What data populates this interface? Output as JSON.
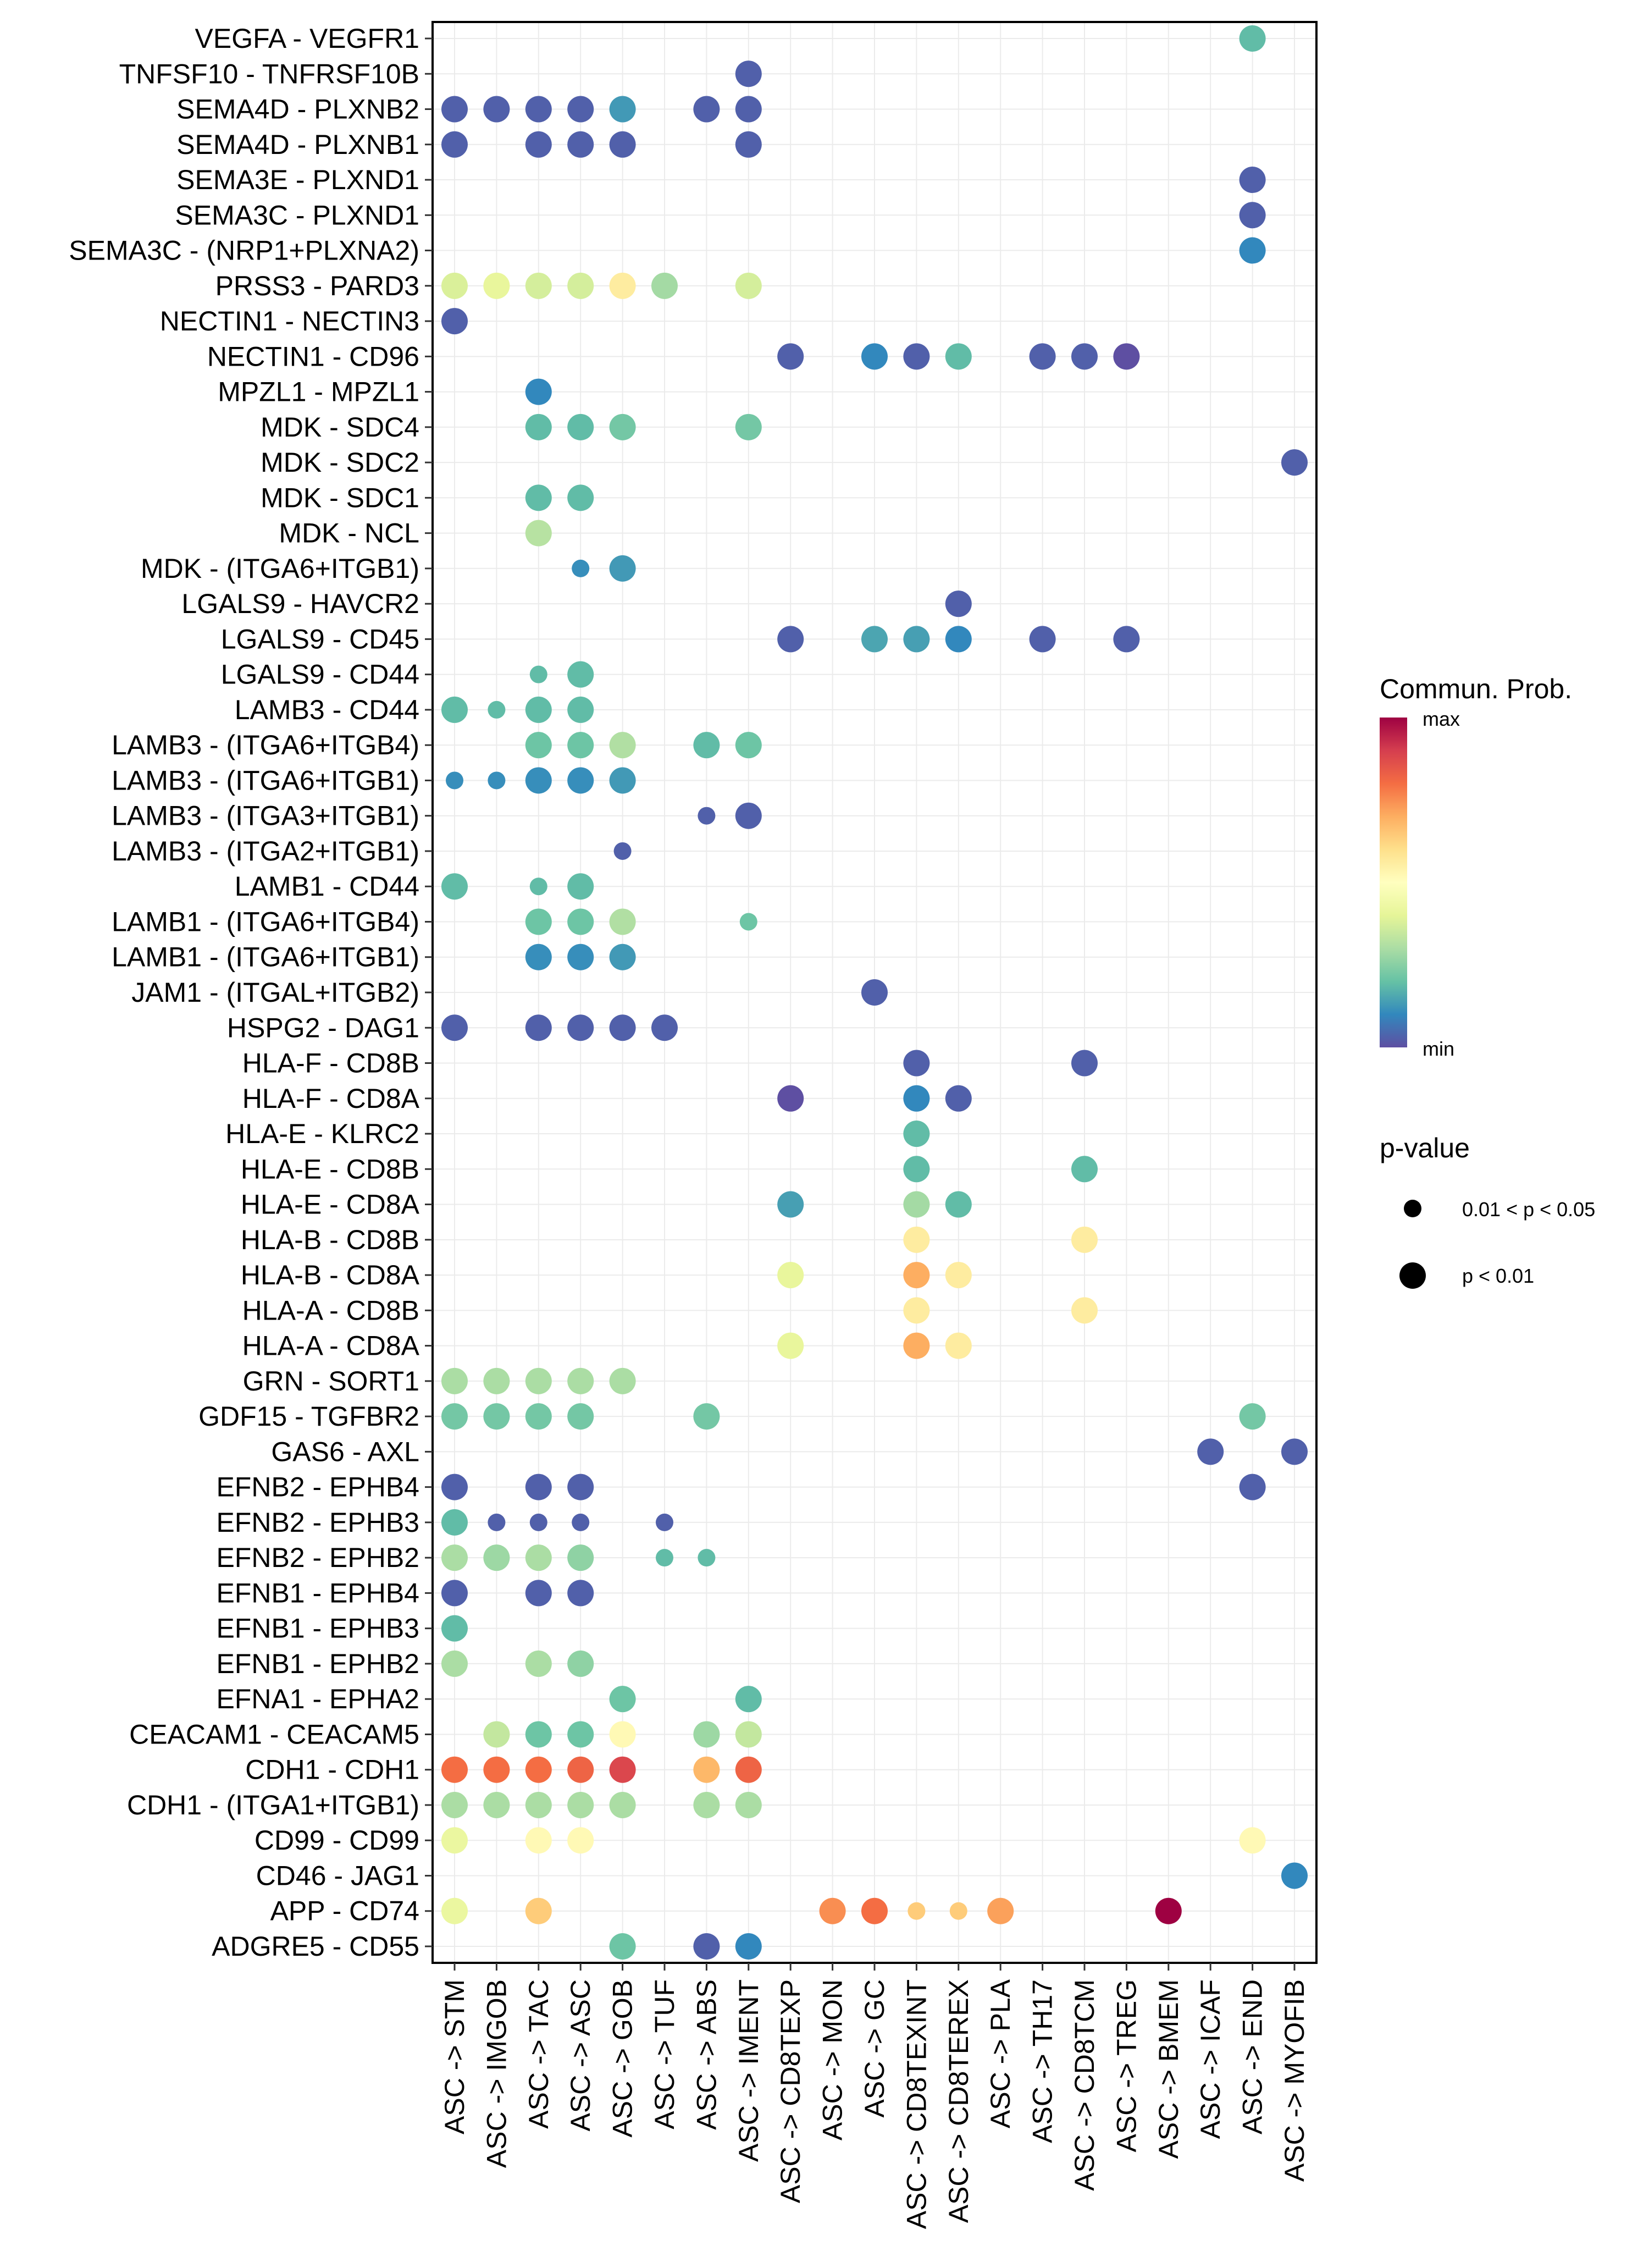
{
  "chart_data": {
    "type": "scatter",
    "subtype": "dot-matrix",
    "title": "",
    "xlabel": "",
    "ylabel": "",
    "grid": true,
    "x": [
      "ASC -> STM",
      "ASC -> IMGOB",
      "ASC -> TAC",
      "ASC -> ASC",
      "ASC -> GOB",
      "ASC -> TUF",
      "ASC -> ABS",
      "ASC -> IMENT",
      "ASC -> CD8TEXP",
      "ASC -> MON",
      "ASC -> GC",
      "ASC -> CD8TEXINT",
      "ASC -> CD8TEREX",
      "ASC -> PLA",
      "ASC -> TH17",
      "ASC -> CD8TCM",
      "ASC -> TREG",
      "ASC -> BMEM",
      "ASC -> ICAF",
      "ASC -> END",
      "ASC -> MYOFIB"
    ],
    "y": [
      "VEGFA - VEGFR1",
      "TNFSF10 - TNFRSF10B",
      "SEMA4D - PLXNB2",
      "SEMA4D - PLXNB1",
      "SEMA3E - PLXND1",
      "SEMA3C - PLXND1",
      "SEMA3C - (NRP1+PLXNA2)",
      "PRSS3 - PARD3",
      "NECTIN1 - NECTIN3",
      "NECTIN1 - CD96",
      "MPZL1 - MPZL1",
      "MDK - SDC4",
      "MDK - SDC2",
      "MDK - SDC1",
      "MDK - NCL",
      "MDK - (ITGA6+ITGB1)",
      "LGALS9 - HAVCR2",
      "LGALS9 - CD45",
      "LGALS9 - CD44",
      "LAMB3 - CD44",
      "LAMB3 - (ITGA6+ITGB4)",
      "LAMB3 - (ITGA6+ITGB1)",
      "LAMB3 - (ITGA3+ITGB1)",
      "LAMB3 - (ITGA2+ITGB1)",
      "LAMB1 - CD44",
      "LAMB1 - (ITGA6+ITGB4)",
      "LAMB1 - (ITGA6+ITGB1)",
      "JAM1 - (ITGAL+ITGB2)",
      "HSPG2 - DAG1",
      "HLA-F - CD8B",
      "HLA-F - CD8A",
      "HLA-E - KLRC2",
      "HLA-E - CD8B",
      "HLA-E - CD8A",
      "HLA-B - CD8B",
      "HLA-B - CD8A",
      "HLA-A - CD8B",
      "HLA-A - CD8A",
      "GRN - SORT1",
      "GDF15 - TGFBR2",
      "GAS6 - AXL",
      "EFNB2 - EPHB4",
      "EFNB2 - EPHB3",
      "EFNB2 - EPHB2",
      "EFNB1 - EPHB4",
      "EFNB1 - EPHB3",
      "EFNB1 - EPHB2",
      "EFNA1 - EPHA2",
      "CEACAM1 - CEACAM5",
      "CDH1 - CDH1",
      "CDH1 - (ITGA1+ITGB1)",
      "CD99 - CD99",
      "CD46 - JAG1",
      "APP - CD74",
      "ADGRE5 - CD55"
    ],
    "point_fields": [
      "y_index",
      "x_index",
      "commun_prob_scaled_0_to_1",
      "pvalue_class"
    ],
    "points": [
      [
        0,
        19,
        0.19,
        "p<0.01"
      ],
      [
        1,
        7,
        0.03,
        "p<0.01"
      ],
      [
        2,
        0,
        0.03,
        "p<0.01"
      ],
      [
        2,
        1,
        0.03,
        "p<0.01"
      ],
      [
        2,
        2,
        0.03,
        "p<0.01"
      ],
      [
        2,
        3,
        0.03,
        "p<0.01"
      ],
      [
        2,
        4,
        0.13,
        "p<0.01"
      ],
      [
        2,
        6,
        0.03,
        "p<0.01"
      ],
      [
        2,
        7,
        0.03,
        "p<0.01"
      ],
      [
        3,
        0,
        0.03,
        "p<0.01"
      ],
      [
        3,
        2,
        0.03,
        "p<0.01"
      ],
      [
        3,
        3,
        0.03,
        "p<0.01"
      ],
      [
        3,
        4,
        0.03,
        "p<0.01"
      ],
      [
        3,
        7,
        0.03,
        "p<0.01"
      ],
      [
        4,
        19,
        0.03,
        "p<0.01"
      ],
      [
        5,
        19,
        0.03,
        "p<0.01"
      ],
      [
        6,
        19,
        0.1,
        "p<0.01"
      ],
      [
        7,
        0,
        0.38,
        "p<0.01"
      ],
      [
        7,
        1,
        0.41,
        "p<0.01"
      ],
      [
        7,
        2,
        0.37,
        "p<0.01"
      ],
      [
        7,
        3,
        0.37,
        "p<0.01"
      ],
      [
        7,
        4,
        0.56,
        "p<0.01"
      ],
      [
        7,
        5,
        0.29,
        "p<0.01"
      ],
      [
        7,
        7,
        0.37,
        "p<0.01"
      ],
      [
        8,
        0,
        0.03,
        "p<0.01"
      ],
      [
        9,
        8,
        0.03,
        "p<0.01"
      ],
      [
        9,
        10,
        0.1,
        "p<0.01"
      ],
      [
        9,
        11,
        0.03,
        "p<0.01"
      ],
      [
        9,
        12,
        0.19,
        "p<0.01"
      ],
      [
        9,
        14,
        0.03,
        "p<0.01"
      ],
      [
        9,
        15,
        0.03,
        "p<0.01"
      ],
      [
        9,
        16,
        0.0,
        "p<0.01"
      ],
      [
        10,
        2,
        0.1,
        "p<0.01"
      ],
      [
        11,
        2,
        0.19,
        "p<0.01"
      ],
      [
        11,
        3,
        0.19,
        "p<0.01"
      ],
      [
        11,
        4,
        0.22,
        "p<0.01"
      ],
      [
        11,
        7,
        0.22,
        "p<0.01"
      ],
      [
        12,
        20,
        0.03,
        "p<0.01"
      ],
      [
        13,
        2,
        0.19,
        "p<0.01"
      ],
      [
        13,
        3,
        0.19,
        "p<0.01"
      ],
      [
        14,
        2,
        0.32,
        "p<0.01"
      ],
      [
        15,
        3,
        0.11,
        "0.01<p<0.05"
      ],
      [
        15,
        4,
        0.13,
        "p<0.01"
      ],
      [
        16,
        12,
        0.03,
        "p<0.01"
      ],
      [
        17,
        8,
        0.03,
        "p<0.01"
      ],
      [
        17,
        10,
        0.15,
        "p<0.01"
      ],
      [
        17,
        11,
        0.14,
        "p<0.01"
      ],
      [
        17,
        12,
        0.1,
        "p<0.01"
      ],
      [
        17,
        14,
        0.03,
        "p<0.01"
      ],
      [
        17,
        16,
        0.03,
        "p<0.01"
      ],
      [
        18,
        2,
        0.19,
        "0.01<p<0.05"
      ],
      [
        18,
        3,
        0.19,
        "p<0.01"
      ],
      [
        19,
        0,
        0.19,
        "p<0.01"
      ],
      [
        19,
        1,
        0.19,
        "0.01<p<0.05"
      ],
      [
        19,
        2,
        0.19,
        "p<0.01"
      ],
      [
        19,
        3,
        0.19,
        "p<0.01"
      ],
      [
        20,
        2,
        0.21,
        "p<0.01"
      ],
      [
        20,
        3,
        0.21,
        "p<0.01"
      ],
      [
        20,
        4,
        0.31,
        "p<0.01"
      ],
      [
        20,
        6,
        0.19,
        "p<0.01"
      ],
      [
        20,
        7,
        0.21,
        "p<0.01"
      ],
      [
        21,
        0,
        0.11,
        "0.01<p<0.05"
      ],
      [
        21,
        1,
        0.11,
        "0.01<p<0.05"
      ],
      [
        21,
        2,
        0.11,
        "p<0.01"
      ],
      [
        21,
        3,
        0.11,
        "p<0.01"
      ],
      [
        21,
        4,
        0.13,
        "p<0.01"
      ],
      [
        22,
        6,
        0.03,
        "0.01<p<0.05"
      ],
      [
        22,
        7,
        0.03,
        "p<0.01"
      ],
      [
        23,
        4,
        0.03,
        "0.01<p<0.05"
      ],
      [
        24,
        0,
        0.19,
        "p<0.01"
      ],
      [
        24,
        2,
        0.19,
        "0.01<p<0.05"
      ],
      [
        24,
        3,
        0.19,
        "p<0.01"
      ],
      [
        25,
        2,
        0.21,
        "p<0.01"
      ],
      [
        25,
        3,
        0.21,
        "p<0.01"
      ],
      [
        25,
        4,
        0.31,
        "p<0.01"
      ],
      [
        25,
        7,
        0.21,
        "0.01<p<0.05"
      ],
      [
        26,
        2,
        0.11,
        "p<0.01"
      ],
      [
        26,
        3,
        0.11,
        "p<0.01"
      ],
      [
        26,
        4,
        0.13,
        "p<0.01"
      ],
      [
        27,
        10,
        0.03,
        "p<0.01"
      ],
      [
        28,
        0,
        0.03,
        "p<0.01"
      ],
      [
        28,
        2,
        0.03,
        "p<0.01"
      ],
      [
        28,
        3,
        0.03,
        "p<0.01"
      ],
      [
        28,
        4,
        0.03,
        "p<0.01"
      ],
      [
        28,
        5,
        0.03,
        "p<0.01"
      ],
      [
        29,
        11,
        0.03,
        "p<0.01"
      ],
      [
        29,
        15,
        0.03,
        "p<0.01"
      ],
      [
        30,
        8,
        0.0,
        "p<0.01"
      ],
      [
        30,
        11,
        0.1,
        "p<0.01"
      ],
      [
        30,
        12,
        0.03,
        "p<0.01"
      ],
      [
        31,
        11,
        0.19,
        "p<0.01"
      ],
      [
        32,
        11,
        0.19,
        "p<0.01"
      ],
      [
        32,
        15,
        0.19,
        "p<0.01"
      ],
      [
        33,
        8,
        0.14,
        "p<0.01"
      ],
      [
        33,
        11,
        0.29,
        "p<0.01"
      ],
      [
        33,
        12,
        0.19,
        "p<0.01"
      ],
      [
        34,
        11,
        0.56,
        "p<0.01"
      ],
      [
        34,
        15,
        0.56,
        "p<0.01"
      ],
      [
        35,
        8,
        0.41,
        "p<0.01"
      ],
      [
        35,
        11,
        0.7,
        "p<0.01"
      ],
      [
        35,
        12,
        0.56,
        "p<0.01"
      ],
      [
        36,
        11,
        0.56,
        "p<0.01"
      ],
      [
        36,
        15,
        0.56,
        "p<0.01"
      ],
      [
        37,
        8,
        0.41,
        "p<0.01"
      ],
      [
        37,
        11,
        0.7,
        "p<0.01"
      ],
      [
        37,
        12,
        0.56,
        "p<0.01"
      ],
      [
        38,
        0,
        0.3,
        "p<0.01"
      ],
      [
        38,
        1,
        0.3,
        "p<0.01"
      ],
      [
        38,
        2,
        0.3,
        "p<0.01"
      ],
      [
        38,
        3,
        0.3,
        "p<0.01"
      ],
      [
        38,
        4,
        0.3,
        "p<0.01"
      ],
      [
        39,
        0,
        0.22,
        "p<0.01"
      ],
      [
        39,
        1,
        0.22,
        "p<0.01"
      ],
      [
        39,
        2,
        0.22,
        "p<0.01"
      ],
      [
        39,
        3,
        0.22,
        "p<0.01"
      ],
      [
        39,
        6,
        0.22,
        "p<0.01"
      ],
      [
        39,
        19,
        0.22,
        "p<0.01"
      ],
      [
        40,
        18,
        0.03,
        "p<0.01"
      ],
      [
        40,
        20,
        0.03,
        "p<0.01"
      ],
      [
        41,
        0,
        0.03,
        "p<0.01"
      ],
      [
        41,
        2,
        0.03,
        "p<0.01"
      ],
      [
        41,
        3,
        0.03,
        "p<0.01"
      ],
      [
        41,
        19,
        0.03,
        "p<0.01"
      ],
      [
        42,
        0,
        0.19,
        "p<0.01"
      ],
      [
        42,
        1,
        0.03,
        "0.01<p<0.05"
      ],
      [
        42,
        2,
        0.03,
        "0.01<p<0.05"
      ],
      [
        42,
        3,
        0.03,
        "0.01<p<0.05"
      ],
      [
        42,
        5,
        0.03,
        "0.01<p<0.05"
      ],
      [
        43,
        0,
        0.3,
        "p<0.01"
      ],
      [
        43,
        1,
        0.28,
        "p<0.01"
      ],
      [
        43,
        2,
        0.3,
        "p<0.01"
      ],
      [
        43,
        3,
        0.26,
        "p<0.01"
      ],
      [
        43,
        5,
        0.19,
        "0.01<p<0.05"
      ],
      [
        43,
        6,
        0.19,
        "0.01<p<0.05"
      ],
      [
        44,
        0,
        0.03,
        "p<0.01"
      ],
      [
        44,
        2,
        0.03,
        "p<0.01"
      ],
      [
        44,
        3,
        0.03,
        "p<0.01"
      ],
      [
        45,
        0,
        0.19,
        "p<0.01"
      ],
      [
        46,
        0,
        0.3,
        "p<0.01"
      ],
      [
        46,
        2,
        0.3,
        "p<0.01"
      ],
      [
        46,
        3,
        0.26,
        "p<0.01"
      ],
      [
        47,
        4,
        0.21,
        "p<0.01"
      ],
      [
        47,
        7,
        0.19,
        "p<0.01"
      ],
      [
        48,
        1,
        0.34,
        "p<0.01"
      ],
      [
        48,
        2,
        0.21,
        "p<0.01"
      ],
      [
        48,
        3,
        0.21,
        "p<0.01"
      ],
      [
        48,
        4,
        0.52,
        "p<0.01"
      ],
      [
        48,
        6,
        0.28,
        "p<0.01"
      ],
      [
        48,
        7,
        0.34,
        "p<0.01"
      ],
      [
        49,
        0,
        0.8,
        "p<0.01"
      ],
      [
        49,
        1,
        0.8,
        "p<0.01"
      ],
      [
        49,
        2,
        0.8,
        "p<0.01"
      ],
      [
        49,
        3,
        0.82,
        "p<0.01"
      ],
      [
        49,
        4,
        0.88,
        "p<0.01"
      ],
      [
        49,
        6,
        0.68,
        "p<0.01"
      ],
      [
        49,
        7,
        0.82,
        "p<0.01"
      ],
      [
        50,
        0,
        0.3,
        "p<0.01"
      ],
      [
        50,
        1,
        0.3,
        "p<0.01"
      ],
      [
        50,
        2,
        0.3,
        "p<0.01"
      ],
      [
        50,
        3,
        0.3,
        "p<0.01"
      ],
      [
        50,
        4,
        0.3,
        "p<0.01"
      ],
      [
        50,
        6,
        0.3,
        "p<0.01"
      ],
      [
        50,
        7,
        0.3,
        "p<0.01"
      ],
      [
        51,
        0,
        0.42,
        "p<0.01"
      ],
      [
        51,
        2,
        0.52,
        "p<0.01"
      ],
      [
        51,
        3,
        0.52,
        "p<0.01"
      ],
      [
        51,
        19,
        0.52,
        "p<0.01"
      ],
      [
        52,
        20,
        0.1,
        "p<0.01"
      ],
      [
        53,
        0,
        0.42,
        "p<0.01"
      ],
      [
        53,
        2,
        0.64,
        "p<0.01"
      ],
      [
        53,
        9,
        0.75,
        "p<0.01"
      ],
      [
        53,
        10,
        0.8,
        "p<0.01"
      ],
      [
        53,
        11,
        0.64,
        "0.01<p<0.05"
      ],
      [
        53,
        12,
        0.64,
        "0.01<p<0.05"
      ],
      [
        53,
        13,
        0.72,
        "p<0.01"
      ],
      [
        53,
        17,
        1.0,
        "p<0.01"
      ],
      [
        54,
        4,
        0.21,
        "p<0.01"
      ],
      [
        54,
        6,
        0.03,
        "p<0.01"
      ],
      [
        54,
        7,
        0.1,
        "p<0.01"
      ]
    ],
    "legend": {
      "color": {
        "title": "Commun. Prob.",
        "max_label": "max",
        "min_label": "min",
        "palette": [
          "#5E4FA2",
          "#3288BD",
          "#66C2A5",
          "#ABDDA4",
          "#E6F598",
          "#FFFFBF",
          "#FEE08B",
          "#FDAE61",
          "#F46D43",
          "#D53E4F",
          "#9E0142"
        ]
      },
      "size": {
        "title": "p-value",
        "items": [
          {
            "label": "0.01 < p < 0.05",
            "class": "0.01<p<0.05"
          },
          {
            "label": "p < 0.01",
            "class": "p<0.01"
          }
        ]
      },
      "placement": "right"
    }
  }
}
